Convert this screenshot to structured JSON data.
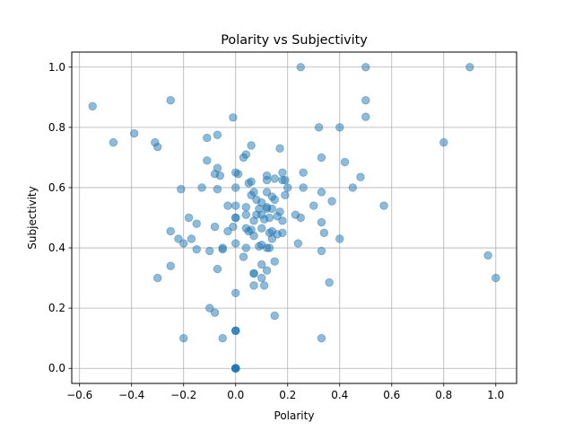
{
  "chart_data": {
    "type": "scatter",
    "title": "Polarity vs Subjectivity",
    "xlabel": "Polarity",
    "ylabel": "Subjectivity",
    "xlim": [
      -0.63,
      1.08
    ],
    "ylim": [
      -0.05,
      1.05
    ],
    "xticks": [
      -0.6,
      -0.4,
      -0.2,
      0.0,
      0.2,
      0.4,
      0.6,
      0.8,
      1.0
    ],
    "xtick_labels": [
      "−0.6",
      "−0.4",
      "−0.2",
      "0.0",
      "0.2",
      "0.4",
      "0.6",
      "0.8",
      "1.0"
    ],
    "yticks": [
      0.0,
      0.2,
      0.4,
      0.6,
      0.8,
      1.0
    ],
    "ytick_labels": [
      "0.0",
      "0.2",
      "0.4",
      "0.6",
      "0.8",
      "1.0"
    ],
    "grid": true,
    "point_color": "#1f77b4",
    "point_alpha": 0.5,
    "points": [
      [
        0.0,
        0.0
      ],
      [
        0.0,
        0.0
      ],
      [
        0.0,
        0.0
      ],
      [
        0.0,
        0.0
      ],
      [
        0.0,
        0.0
      ],
      [
        0.0,
        0.0
      ],
      [
        0.0,
        0.125
      ],
      [
        0.0,
        0.125
      ],
      [
        0.0,
        0.125
      ],
      [
        0.0,
        0.25
      ],
      [
        0.0,
        0.5
      ],
      [
        0.0,
        0.5
      ],
      [
        0.0,
        0.54
      ],
      [
        0.0,
        0.6
      ],
      [
        0.0,
        0.65
      ],
      [
        0.0,
        0.415
      ],
      [
        0.25,
        1.0
      ],
      [
        0.5,
        1.0
      ],
      [
        0.9,
        1.0
      ],
      [
        0.5,
        0.89
      ],
      [
        -0.55,
        0.87
      ],
      [
        -0.25,
        0.89
      ],
      [
        -0.39,
        0.78
      ],
      [
        -0.47,
        0.75
      ],
      [
        -0.31,
        0.75
      ],
      [
        -0.3,
        0.735
      ],
      [
        -0.01,
        0.833
      ],
      [
        -0.07,
        0.775
      ],
      [
        -0.11,
        0.765
      ],
      [
        0.5,
        0.835
      ],
      [
        0.32,
        0.8
      ],
      [
        0.4,
        0.8
      ],
      [
        0.8,
        0.75
      ],
      [
        0.06,
        0.74
      ],
      [
        0.17,
        0.73
      ],
      [
        0.03,
        0.7
      ],
      [
        0.04,
        0.71
      ],
      [
        0.33,
        0.7
      ],
      [
        -0.11,
        0.69
      ],
      [
        0.42,
        0.685
      ],
      [
        -0.07,
        0.665
      ],
      [
        0.26,
        0.65
      ],
      [
        0.18,
        0.65
      ],
      [
        -0.06,
        0.64
      ],
      [
        0.01,
        0.645
      ],
      [
        0.12,
        0.64
      ],
      [
        0.15,
        0.63
      ],
      [
        0.18,
        0.625
      ],
      [
        0.12,
        0.625
      ],
      [
        0.19,
        0.625
      ],
      [
        0.48,
        0.635
      ],
      [
        0.05,
        0.615
      ],
      [
        0.06,
        0.62
      ],
      [
        -0.08,
        0.645
      ],
      [
        -0.21,
        0.595
      ],
      [
        -0.13,
        0.6
      ],
      [
        -0.07,
        0.595
      ],
      [
        0.2,
        0.6
      ],
      [
        0.26,
        0.6
      ],
      [
        0.45,
        0.6
      ],
      [
        0.07,
        0.585
      ],
      [
        0.12,
        0.585
      ],
      [
        0.19,
        0.575
      ],
      [
        0.33,
        0.585
      ],
      [
        0.37,
        0.555
      ],
      [
        0.57,
        0.54
      ],
      [
        0.06,
        0.575
      ],
      [
        0.14,
        0.57
      ],
      [
        0.08,
        0.56
      ],
      [
        0.1,
        0.55
      ],
      [
        0.15,
        0.56
      ],
      [
        -0.03,
        0.54
      ],
      [
        0.04,
        0.535
      ],
      [
        0.12,
        0.53
      ],
      [
        0.17,
        0.52
      ],
      [
        0.3,
        0.54
      ],
      [
        0.1,
        0.51
      ],
      [
        0.14,
        0.53
      ],
      [
        0.23,
        0.51
      ],
      [
        0.04,
        0.51
      ],
      [
        0.08,
        0.51
      ],
      [
        0.12,
        0.535
      ],
      [
        0.09,
        0.53
      ],
      [
        0.25,
        0.5
      ],
      [
        0.16,
        0.505
      ],
      [
        0.13,
        0.5
      ],
      [
        0.11,
        0.495
      ],
      [
        -0.18,
        0.5
      ],
      [
        0.07,
        0.49
      ],
      [
        0.18,
        0.49
      ],
      [
        0.33,
        0.485
      ],
      [
        -0.15,
        0.48
      ],
      [
        -0.08,
        0.47
      ],
      [
        -0.01,
        0.47
      ],
      [
        0.04,
        0.465
      ],
      [
        0.05,
        0.455
      ],
      [
        0.06,
        0.46
      ],
      [
        0.1,
        0.465
      ],
      [
        0.13,
        0.45
      ],
      [
        0.14,
        0.455
      ],
      [
        0.16,
        0.445
      ],
      [
        0.18,
        0.45
      ],
      [
        -0.25,
        0.455
      ],
      [
        0.34,
        0.45
      ],
      [
        0.4,
        0.43
      ],
      [
        -0.03,
        0.455
      ],
      [
        0.07,
        0.44
      ],
      [
        0.14,
        0.43
      ],
      [
        -0.22,
        0.43
      ],
      [
        -0.17,
        0.43
      ],
      [
        -0.2,
        0.415
      ],
      [
        0.24,
        0.415
      ],
      [
        0.1,
        0.41
      ],
      [
        0.09,
        0.405
      ],
      [
        0.13,
        0.4
      ],
      [
        0.04,
        0.4
      ],
      [
        0.12,
        0.4
      ],
      [
        -0.05,
        0.4
      ],
      [
        -0.05,
        0.395
      ],
      [
        -0.1,
        0.39
      ],
      [
        -0.15,
        0.395
      ],
      [
        0.33,
        0.39
      ],
      [
        0.03,
        0.37
      ],
      [
        0.97,
        0.375
      ],
      [
        1.0,
        0.3
      ],
      [
        -0.25,
        0.34
      ],
      [
        0.1,
        0.345
      ],
      [
        0.15,
        0.355
      ],
      [
        0.12,
        0.325
      ],
      [
        -0.07,
        0.33
      ],
      [
        -0.3,
        0.3
      ],
      [
        0.1,
        0.3
      ],
      [
        0.36,
        0.285
      ],
      [
        0.07,
        0.315
      ],
      [
        0.07,
        0.315
      ],
      [
        0.07,
        0.275
      ],
      [
        0.11,
        0.275
      ],
      [
        -0.1,
        0.2
      ],
      [
        -0.08,
        0.185
      ],
      [
        0.15,
        0.175
      ],
      [
        -0.2,
        0.1
      ],
      [
        -0.05,
        0.1
      ],
      [
        0.33,
        0.1
      ]
    ]
  }
}
